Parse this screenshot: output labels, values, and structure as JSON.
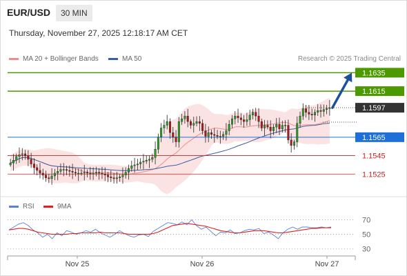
{
  "header": {
    "pair": "EUR/USD",
    "timeframe": "30 MIN",
    "datetime": "Thursday, November 27, 2025 12:18:17 AM CET",
    "credit": "Research © 2025 Trading Central"
  },
  "legend": {
    "ma20": {
      "label": "MA 20 + Bollinger Bands",
      "color": "#f08c8c"
    },
    "ma50": {
      "label": "MA 50",
      "color": "#3a5fa0"
    }
  },
  "rsi_legend": {
    "rsi": {
      "label": "RSI",
      "color": "#5b7fd6"
    },
    "ma9": {
      "label": "9MA",
      "color": "#e02020"
    }
  },
  "chart_data": [
    {
      "type": "candlestick",
      "ylim": [
        1.1505,
        1.1645
      ],
      "x_ticks": [
        "Nov 25",
        "Nov 26",
        "Nov 27"
      ],
      "last_price": 1.1597,
      "levels": [
        {
          "value": 1.1635,
          "label": "1.1635",
          "kind": "resistance",
          "color": "#4c9a00"
        },
        {
          "value": 1.1615,
          "label": "1.1615",
          "kind": "resistance",
          "color": "#4c9a00"
        },
        {
          "value": 1.1597,
          "label": "1.1597",
          "kind": "last",
          "color": "#333333"
        },
        {
          "value": 1.1565,
          "label": "1.1565",
          "kind": "pivot",
          "color": "#1e6fd8"
        },
        {
          "value": 1.1545,
          "label": "1.1545",
          "kind": "support",
          "color": "#d02020"
        },
        {
          "value": 1.1525,
          "label": "1.1525",
          "kind": "support",
          "color": "#d02020"
        }
      ],
      "close_path": [
        1.1537,
        1.154,
        1.1544,
        1.1546,
        1.1547,
        1.1545,
        1.1541,
        1.1536,
        1.1532,
        1.1529,
        1.1526,
        1.1524,
        1.1521,
        1.152,
        1.1523,
        1.1526,
        1.1528,
        1.153,
        1.153,
        1.1529,
        1.1528,
        1.1527,
        1.1526,
        1.1526,
        1.1526,
        1.1527,
        1.1526,
        1.1525,
        1.1526,
        1.1527,
        1.1526,
        1.1525,
        1.1524,
        1.1522,
        1.1521,
        1.152,
        1.1521,
        1.1522,
        1.1524,
        1.1527,
        1.1531,
        1.1534,
        1.1535,
        1.1536,
        1.1538,
        1.1539,
        1.154,
        1.1541,
        1.1543,
        1.1552,
        1.1565,
        1.1575,
        1.1578,
        1.1582,
        1.157,
        1.1565,
        1.156,
        1.1582,
        1.1585,
        1.1588,
        1.1582,
        1.1578,
        1.158,
        1.1582,
        1.158,
        1.1572,
        1.1566,
        1.157,
        1.1568,
        1.1567,
        1.1566,
        1.1566,
        1.1568,
        1.1572,
        1.1579,
        1.1585,
        1.1588,
        1.1586,
        1.1584,
        1.1582,
        1.1584,
        1.1589,
        1.1592,
        1.1588,
        1.1582,
        1.1575,
        1.1578,
        1.1576,
        1.1572,
        1.1576,
        1.1579,
        1.1574,
        1.1578,
        1.1578,
        1.1562,
        1.1556,
        1.156,
        1.158,
        1.1588,
        1.1596,
        1.1592,
        1.159,
        1.1589,
        1.1592,
        1.1594,
        1.1593,
        1.1595,
        1.1596,
        1.1597
      ],
      "arrow": {
        "from": 1.1597,
        "to": 1.1635,
        "direction": "up"
      }
    },
    {
      "type": "line",
      "title": "RSI",
      "ylim": [
        25,
        78
      ],
      "y_ticks": [
        70,
        50,
        30
      ],
      "series": [
        {
          "name": "RSI",
          "color": "#5b7fd6",
          "values": [
            56,
            60,
            64,
            66,
            62,
            56,
            52,
            46,
            50,
            44,
            52,
            48,
            55,
            53,
            50,
            52,
            55,
            53,
            57,
            52,
            49,
            46,
            50,
            55,
            51,
            48,
            46,
            49,
            50,
            47,
            54,
            58,
            62,
            66,
            65,
            63,
            67,
            63,
            70,
            62,
            57,
            60,
            54,
            48,
            53,
            52,
            56,
            51,
            52,
            55,
            57,
            56,
            58,
            51,
            53,
            49,
            44,
            52,
            57,
            60,
            57,
            60,
            60,
            59,
            59,
            60,
            59,
            60
          ]
        },
        {
          "name": "9MA",
          "color": "#e02020",
          "values": [
            56,
            57,
            58,
            58,
            57,
            55,
            53,
            52,
            51,
            50,
            50,
            50,
            50,
            51,
            51,
            52,
            52,
            52,
            52,
            53,
            52,
            52,
            52,
            52,
            51,
            50,
            50,
            50,
            50,
            50,
            51,
            53,
            56,
            59,
            62,
            63,
            64,
            65,
            64,
            63,
            62,
            61,
            59,
            57,
            55,
            54,
            53,
            52,
            52,
            53,
            54,
            55,
            55,
            55,
            54,
            53,
            52,
            52,
            53,
            54,
            55,
            56,
            57,
            58,
            58,
            59,
            59,
            59
          ]
        }
      ]
    }
  ]
}
